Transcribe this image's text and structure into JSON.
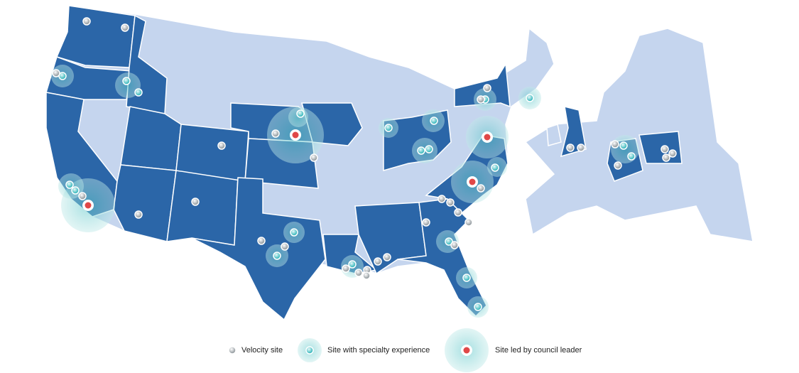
{
  "legend": {
    "items": [
      {
        "label": "Velocity site"
      },
      {
        "label": "Site with specialty experience"
      },
      {
        "label": "Site led by council leader"
      }
    ]
  }
}
